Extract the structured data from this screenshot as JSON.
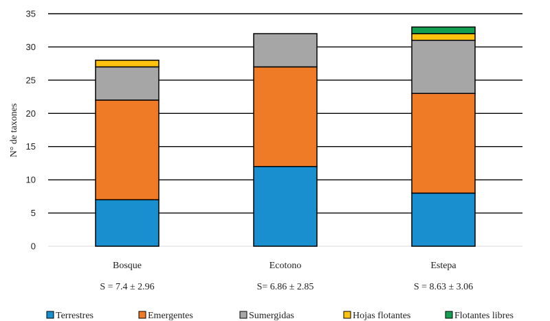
{
  "chart_data": {
    "type": "bar",
    "stacked": true,
    "categories": [
      "Bosque",
      "Ecotono",
      "Estepa"
    ],
    "category_notes": [
      "S = 7.4 ± 2.96",
      "S= 6.86 ± 2.85",
      "S = 8.63 ± 3.06"
    ],
    "ylabel": "N° de taxones",
    "xlabel": "",
    "ylim": [
      0,
      35
    ],
    "yticks": [
      0,
      5,
      10,
      15,
      20,
      25,
      30,
      35
    ],
    "grid": true,
    "legend_position": "bottom",
    "series": [
      {
        "name": "Terrestres",
        "color": "#1a8fd0",
        "values": [
          7,
          12,
          8
        ]
      },
      {
        "name": "Emergentes",
        "color": "#f07b26",
        "values": [
          15,
          15,
          15
        ]
      },
      {
        "name": "Sumergidas",
        "color": "#a6a6a6",
        "values": [
          5,
          5,
          8
        ]
      },
      {
        "name": "Hojas flotantes",
        "color": "#ffc20e",
        "values": [
          1,
          0,
          1
        ]
      },
      {
        "name": "Flotantes libres",
        "color": "#14a052",
        "values": [
          0,
          0,
          1
        ]
      }
    ]
  }
}
